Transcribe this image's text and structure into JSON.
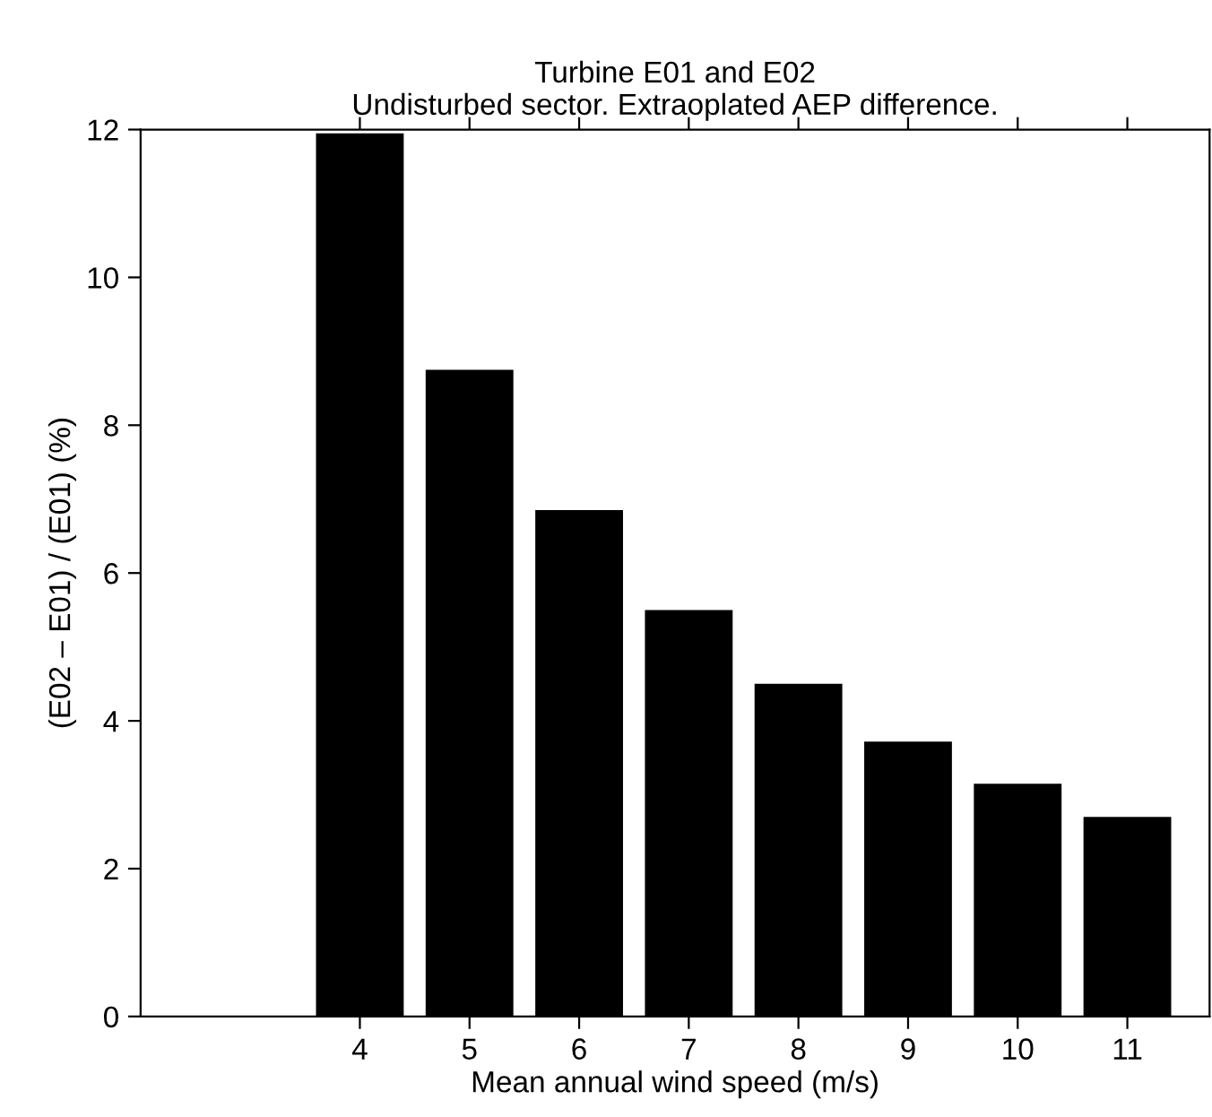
{
  "chart_data": {
    "type": "bar",
    "title": "Turbine E01 and E02\nUndisturbed sector. Extraoplated AEP difference.",
    "xlabel": "Mean annual wind speed (m/s)",
    "ylabel": "(E02 – E01) / (E01) (%)",
    "x": [
      4,
      5,
      6,
      7,
      8,
      9,
      10,
      11
    ],
    "values": [
      11.95,
      8.75,
      6.85,
      5.5,
      4.5,
      3.72,
      3.15,
      2.7
    ],
    "color": "#000000",
    "xlim": [
      2,
      11.75
    ],
    "xticks": [
      4,
      5,
      6,
      7,
      8,
      9,
      10,
      11
    ],
    "ylim": [
      0,
      12
    ],
    "yticks": [
      0,
      2,
      4,
      6,
      8,
      10,
      12
    ],
    "grid": false,
    "legend": false
  }
}
